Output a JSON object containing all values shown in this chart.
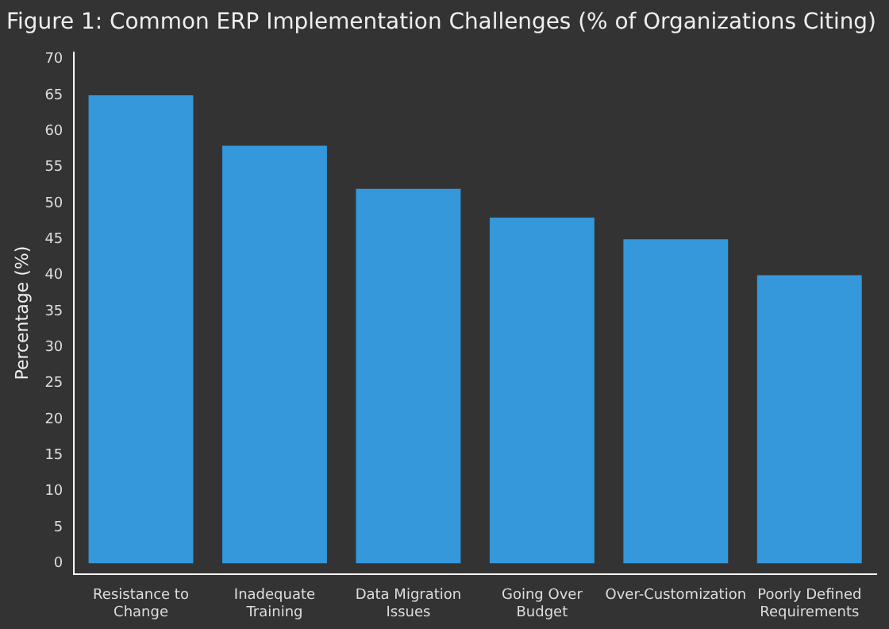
{
  "chart_data": {
    "type": "bar",
    "title": "Figure 1: Common ERP Implementation Challenges (% of Organizations Citing)",
    "ylabel": "Percentage (%)",
    "categories": [
      "Resistance to Change",
      "Inadequate Training",
      "Data Migration Issues",
      "Going Over Budget",
      "Over-Customization",
      "Poorly Defined Requirements"
    ],
    "values": [
      65,
      58,
      52,
      48,
      45,
      40
    ],
    "color": "#3498db",
    "ylim": [
      -1.5,
      71
    ],
    "yticks": [
      0,
      5,
      10,
      15,
      20,
      25,
      30,
      35,
      40,
      45,
      50,
      55,
      60,
      65,
      70
    ],
    "grid": false,
    "legend": false
  }
}
